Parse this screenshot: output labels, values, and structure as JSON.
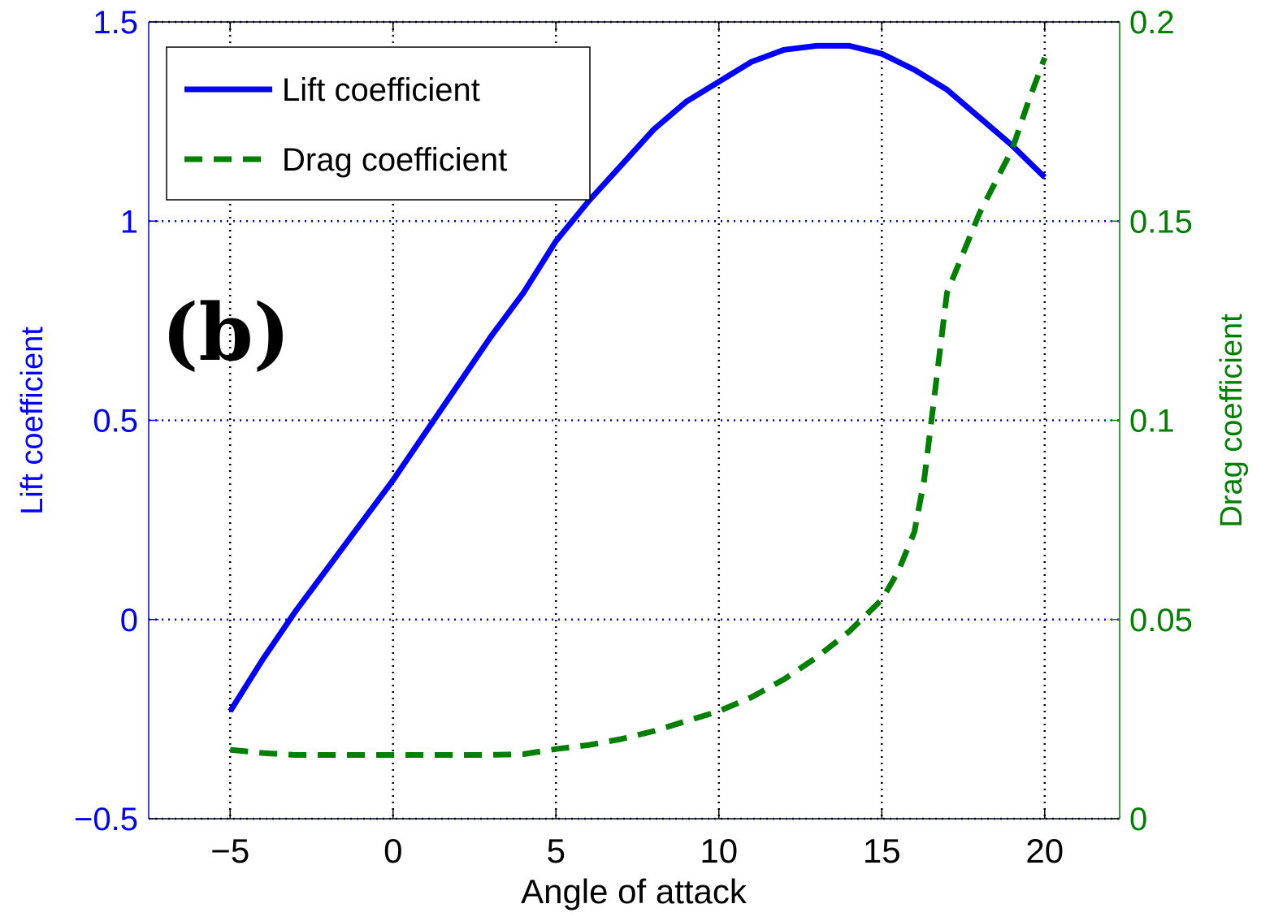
{
  "chart_data": {
    "type": "line",
    "panel_label": "(b)",
    "xlabel": "Angle of attack",
    "ylabel_left": "Lift coefficient",
    "ylabel_right": "Drag coefficient",
    "xlim": [
      -7.5,
      22.3
    ],
    "ylim_left": [
      -0.5,
      1.5
    ],
    "ylim_right": [
      0,
      0.2
    ],
    "xticks": [
      -5,
      0,
      5,
      10,
      15,
      20
    ],
    "xtick_labels": [
      "−5",
      "0",
      "5",
      "10",
      "15",
      "20"
    ],
    "yticks_left": [
      -0.5,
      0,
      0.5,
      1,
      1.5
    ],
    "ytick_labels_left": [
      "−0.5",
      "0",
      "0.5",
      "1",
      "1.5"
    ],
    "yticks_right": [
      0,
      0.05,
      0.1,
      0.15,
      0.2
    ],
    "ytick_labels_right": [
      "0",
      "0.05",
      "0.1",
      "0.15",
      "0.2"
    ],
    "grid": "dotted",
    "legend_position": "top-left",
    "series": [
      {
        "name": "Lift coefficient",
        "axis": "left",
        "style": "solid",
        "color": "#0000ff",
        "x": [
          -5,
          -4,
          -3,
          -2,
          -1,
          0,
          1,
          2,
          3,
          4,
          5,
          6,
          7,
          8,
          9,
          10,
          11,
          12,
          13,
          14,
          15,
          16,
          17,
          18,
          19,
          20
        ],
        "values": [
          -0.23,
          -0.1,
          0.02,
          0.13,
          0.24,
          0.35,
          0.47,
          0.59,
          0.71,
          0.82,
          0.95,
          1.05,
          1.14,
          1.23,
          1.3,
          1.35,
          1.4,
          1.43,
          1.44,
          1.44,
          1.42,
          1.38,
          1.33,
          1.26,
          1.19,
          1.11
        ]
      },
      {
        "name": "Drag coefficient",
        "axis": "right",
        "style": "dashed",
        "color": "#008000",
        "x": [
          -5,
          -4,
          -3,
          -2,
          -1,
          0,
          1,
          2,
          3,
          4,
          5,
          6,
          7,
          8,
          9,
          10,
          11,
          12,
          13,
          14,
          15,
          15.5,
          16,
          16.3,
          16.6,
          17,
          17.5,
          18,
          18.5,
          19,
          19.5,
          20
        ],
        "values": [
          0.0173,
          0.0165,
          0.016,
          0.016,
          0.016,
          0.016,
          0.016,
          0.016,
          0.016,
          0.0162,
          0.0175,
          0.0185,
          0.02,
          0.022,
          0.0245,
          0.027,
          0.0305,
          0.035,
          0.0405,
          0.047,
          0.055,
          0.062,
          0.072,
          0.085,
          0.105,
          0.132,
          0.142,
          0.152,
          0.16,
          0.168,
          0.18,
          0.191
        ]
      }
    ]
  },
  "colors": {
    "left_axis": "#0000ff",
    "right_axis": "#007f00",
    "lift": "#0000ff",
    "drag": "#008000",
    "grid": "#000000",
    "axes_text": "#000000"
  }
}
